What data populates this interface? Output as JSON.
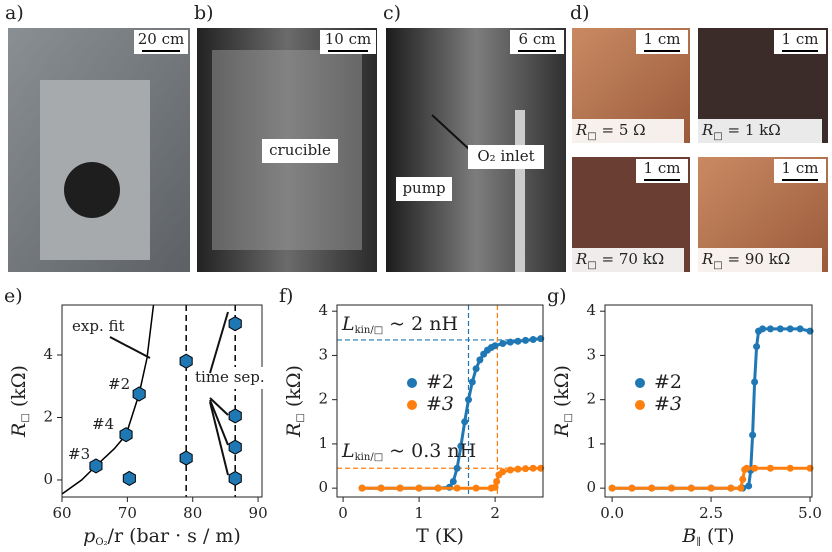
{
  "panels": [
    {
      "label": "a)",
      "scale": "20 cm"
    },
    {
      "label": "b)",
      "scale": "10 cm",
      "annotations": [
        "crucible"
      ]
    },
    {
      "label": "c)",
      "scale": "6 cm",
      "annotations": [
        "O₂ inlet",
        "pump"
      ]
    },
    {
      "label": "d)",
      "tiles": [
        {
          "scale": "1 cm",
          "caption": [
            "R",
            "□",
            " = 5 Ω"
          ]
        },
        {
          "scale": "1 cm",
          "caption": [
            "R",
            "□",
            " = 1 kΩ"
          ]
        },
        {
          "scale": "1 cm",
          "caption": [
            "R",
            "□",
            " = 70 kΩ"
          ]
        },
        {
          "scale": "1 cm",
          "caption": [
            "R",
            "□",
            " = 90 kΩ"
          ]
        }
      ]
    }
  ],
  "chart_data": [
    {
      "type": "scatter",
      "panel": "e)",
      "xlabel": [
        "p",
        "O₂",
        "/r (bar · s / m)"
      ],
      "ylabel": [
        "R",
        "□",
        " (kΩ)"
      ],
      "xlim": [
        60,
        90.6
      ],
      "ylim": [
        -0.545,
        5.6
      ],
      "xticks": [
        60,
        70,
        80,
        90
      ],
      "yticks": [
        0,
        2,
        4
      ],
      "series": [
        {
          "color": "#1f77b4",
          "marker": "hexagon",
          "x": [
            65.2,
            69.8,
            70.3,
            71.8,
            79,
            79,
            86.5,
            86.5,
            86.5,
            86.5
          ],
          "values": [
            0.45,
            1.45,
            0.05,
            2.75,
            3.8,
            0.7,
            5.0,
            2.05,
            1.05,
            0.05
          ]
        }
      ],
      "fit": {
        "color": "#000000",
        "x": [
          60,
          63,
          65.2,
          68,
          69.8,
          71.8,
          73,
          74
        ],
        "values": [
          -0.45,
          0.0,
          0.45,
          1.0,
          1.45,
          2.75,
          3.9,
          5.6
        ]
      },
      "vlines": [
        79,
        86.5
      ],
      "annotations": [
        "exp. fit",
        "#2",
        "#4",
        "#3",
        "time sep."
      ]
    },
    {
      "type": "line",
      "panel": "f)",
      "xlabel": "T (K)",
      "ylabel": [
        "R",
        "□",
        " (kΩ)"
      ],
      "xlim": [
        -0.08,
        2.63
      ],
      "ylim": [
        -0.2,
        4.14
      ],
      "xticks": [
        0,
        1,
        2
      ],
      "yticks": [
        0,
        1,
        2,
        3,
        4
      ],
      "series": [
        {
          "name": "#2",
          "color": "#1f77b4",
          "x": [
            0.25,
            0.5,
            0.75,
            1.0,
            1.25,
            1.4,
            1.45,
            1.5,
            1.55,
            1.6,
            1.65,
            1.7,
            1.75,
            1.8,
            1.85,
            1.9,
            1.95,
            2.0,
            2.1,
            2.2,
            2.3,
            2.4,
            2.5,
            2.6
          ],
          "values": [
            0,
            0,
            0,
            0,
            0,
            0.02,
            0.15,
            0.45,
            0.95,
            1.5,
            2.0,
            2.4,
            2.7,
            2.9,
            3.03,
            3.12,
            3.18,
            3.22,
            3.27,
            3.3,
            3.32,
            3.34,
            3.36,
            3.38
          ]
        },
        {
          "name": "#3",
          "color": "#ff7f0e",
          "x": [
            0.25,
            0.5,
            0.75,
            1.0,
            1.25,
            1.5,
            1.75,
            1.95,
            2.0,
            2.02,
            2.05,
            2.1,
            2.2,
            2.3,
            2.4,
            2.5,
            2.6
          ],
          "values": [
            0,
            0,
            0,
            0,
            0,
            0,
            0,
            0,
            0.02,
            0.15,
            0.3,
            0.37,
            0.41,
            0.43,
            0.44,
            0.45,
            0.45
          ]
        }
      ],
      "refs": [
        {
          "x": 1.65,
          "y": 3.35,
          "color": "#1f77b4"
        },
        {
          "x": 2.03,
          "y": 0.45,
          "color": "#ff7f0e"
        }
      ],
      "annotations": [
        [
          "L",
          "kin/□",
          " ~ 2 nH"
        ],
        [
          "L",
          "kin/□",
          " ~ 0.3 nH"
        ]
      ]
    },
    {
      "type": "line",
      "panel": "g)",
      "xlabel": [
        "B",
        "∥",
        " (T)"
      ],
      "ylabel": [
        "R",
        "□",
        " (kΩ)"
      ],
      "xlim": [
        -0.18,
        5.05
      ],
      "ylim": [
        -0.2,
        4.14
      ],
      "xticks": [
        {
          "value": 0,
          "label": "0.0"
        },
        2.5,
        {
          "value": 5,
          "label": "5.0"
        }
      ],
      "yticks": [
        0,
        1,
        2,
        3,
        4
      ],
      "series": [
        {
          "name": "#2",
          "color": "#1f77b4",
          "x": [
            0,
            0.5,
            1,
            1.5,
            2,
            2.5,
            3,
            3.3,
            3.45,
            3.5,
            3.55,
            3.6,
            3.65,
            3.7,
            3.8,
            4,
            4.25,
            4.5,
            4.75,
            5.0
          ],
          "values": [
            0,
            0,
            0,
            0,
            0,
            0,
            0,
            0,
            0.05,
            0.4,
            1.2,
            2.4,
            3.2,
            3.55,
            3.6,
            3.6,
            3.6,
            3.6,
            3.6,
            3.55
          ]
        },
        {
          "name": "#3",
          "color": "#ff7f0e",
          "x": [
            0,
            0.5,
            1,
            1.5,
            2,
            2.5,
            3,
            3.25,
            3.3,
            3.35,
            3.4,
            3.6,
            4,
            4.5,
            5.0
          ],
          "values": [
            0,
            0,
            0,
            0,
            0,
            0,
            0,
            0,
            0.2,
            0.42,
            0.45,
            0.45,
            0.45,
            0.45,
            0.45
          ]
        }
      ]
    }
  ]
}
